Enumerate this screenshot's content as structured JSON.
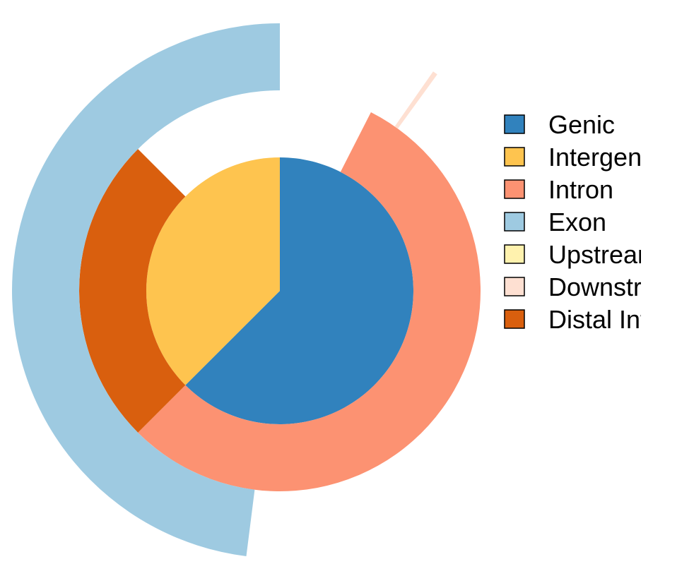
{
  "chart_data": {
    "type": "pie",
    "subtype": "nested-donut",
    "title": "",
    "rings": [
      {
        "level": 1,
        "slices": [
          {
            "label": "Genic",
            "value": 62.5,
            "color": "#3182bd"
          },
          {
            "label": "Intergenic",
            "value": 37.5,
            "color": "#fec44f"
          }
        ]
      },
      {
        "level": 2,
        "slices": [
          {
            "label": "Intron",
            "value": 55.0,
            "color": "#fc9272",
            "start": 7.5
          },
          {
            "label": "Distal Intergenic",
            "value": 25.0,
            "color": "#d95f0e",
            "start": 62.5
          }
        ]
      },
      {
        "level": 3,
        "slices": [
          {
            "label": "Exon",
            "value": 48.0,
            "color": "#9ecae1",
            "start": 52.0
          },
          {
            "label": "Downstream",
            "value": 0.3,
            "color": "#fee0d2",
            "start": 9.7
          }
        ]
      }
    ],
    "legend": {
      "position": "right",
      "entries": [
        {
          "label": "Genic",
          "color": "#3182bd"
        },
        {
          "label": "Intergenic",
          "color": "#fec44f"
        },
        {
          "label": "Intron",
          "color": "#fc9272"
        },
        {
          "label": "Exon",
          "color": "#9ecae1"
        },
        {
          "label": "Upstream",
          "color": "#fff2ae"
        },
        {
          "label": "Downstream",
          "color": "#fee0d2"
        },
        {
          "label": "Distal Intergenic",
          "color": "#d95f0e"
        }
      ]
    }
  }
}
